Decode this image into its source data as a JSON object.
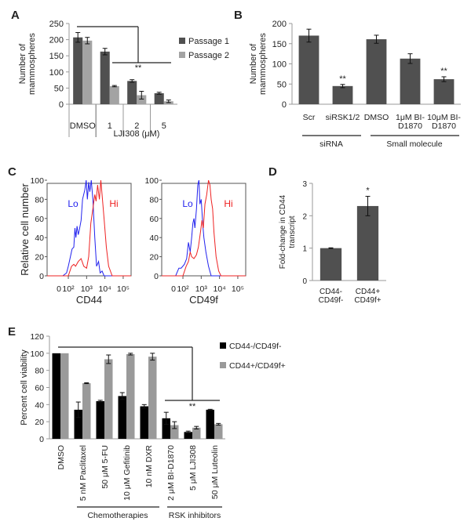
{
  "panel_letters": [
    "A",
    "B",
    "C",
    "D",
    "E"
  ],
  "chart_data": [
    {
      "id": "A",
      "type": "bar",
      "ylabel": [
        "Number of",
        "mammospheres"
      ],
      "ylim": [
        0,
        250
      ],
      "yticks": [
        0,
        50,
        100,
        150,
        200,
        250
      ],
      "categories": [
        "DMSO",
        "1",
        "2",
        "5"
      ],
      "group_label": "LJI308 (μM)",
      "series": [
        {
          "name": "Passage 1",
          "color": "#505050",
          "values": [
            207,
            163,
            72,
            34
          ],
          "errors": [
            15,
            10,
            4,
            3
          ]
        },
        {
          "name": "Passage 2",
          "color": "#a3a3a3",
          "values": [
            197,
            56,
            28,
            9
          ],
          "errors": [
            10,
            2,
            12,
            4
          ]
        }
      ],
      "legend": "right",
      "significance": "**"
    },
    {
      "id": "B",
      "type": "bar",
      "ylabel": [
        "Number of",
        "mammospheres"
      ],
      "ylim": [
        0,
        200
      ],
      "yticks": [
        0,
        50,
        100,
        150,
        200
      ],
      "categories": [
        [
          "Scr",
          ""
        ],
        [
          "siRSK1/2",
          ""
        ],
        [
          "DMSO",
          ""
        ],
        [
          "1μM BI-",
          "D1870"
        ],
        [
          "10μM BI-",
          "D1870"
        ]
      ],
      "series": [
        {
          "color": "#505050",
          "values": [
            170,
            45,
            161,
            113,
            62
          ],
          "errors": [
            16,
            4,
            10,
            12,
            6
          ]
        }
      ],
      "annotations": [
        "",
        "**",
        "",
        "",
        "**"
      ],
      "groups": [
        {
          "label": "siRNA"
        },
        {
          "label": "Small molecule"
        }
      ]
    },
    {
      "id": "C1",
      "type": "line",
      "ylabel": "Relative cell number",
      "xlabel": "CD44",
      "ylim": [
        0,
        100
      ],
      "yticks": [
        0,
        20,
        40,
        60,
        80,
        100
      ],
      "x_scale": "log",
      "xtick_labels": [
        "0",
        "10²",
        "10³",
        "10⁴",
        "10⁵"
      ],
      "series": [
        {
          "name": "Lo",
          "color": "#2222ee",
          "x": [
            50,
            80,
            100,
            130,
            160,
            200,
            230,
            260,
            300,
            350,
            400,
            500,
            600,
            800,
            950,
            1100,
            1300,
            1500,
            1800,
            2200,
            2800,
            3500,
            4500,
            5500,
            7000,
            9000
          ],
          "y": [
            0,
            3,
            10,
            20,
            28,
            30,
            50,
            40,
            52,
            43,
            48,
            58,
            80,
            90,
            100,
            80,
            98,
            88,
            100,
            80,
            40,
            10,
            15,
            3,
            5,
            0
          ]
        },
        {
          "name": "Hi",
          "color": "#ee2222",
          "x": [
            100,
            150,
            200,
            250,
            350,
            500,
            700,
            1000,
            1300,
            1700,
            2200,
            2800,
            3300,
            4000,
            5000,
            6000,
            7000,
            9000,
            12000,
            16000,
            25000
          ],
          "y": [
            0,
            10,
            12,
            10,
            15,
            18,
            10,
            8,
            20,
            55,
            70,
            85,
            78,
            95,
            80,
            100,
            85,
            60,
            30,
            10,
            0
          ]
        }
      ]
    },
    {
      "id": "C2",
      "type": "line",
      "xlabel": "CD49f",
      "ylim": [
        0,
        100
      ],
      "yticks": [
        0,
        20,
        40,
        60,
        80,
        100
      ],
      "x_scale": "log",
      "xtick_labels": [
        "0",
        "10²",
        "10³",
        "10⁴",
        "10⁵"
      ],
      "series": [
        {
          "name": "Lo",
          "color": "#2222ee",
          "x": [
            40,
            60,
            80,
            120,
            160,
            200,
            250,
            300,
            350,
            400,
            450,
            550,
            650,
            750,
            850,
            1000,
            1200,
            1400,
            1800,
            2500,
            3500
          ],
          "y": [
            0,
            8,
            8,
            12,
            18,
            35,
            25,
            40,
            55,
            60,
            50,
            70,
            95,
            100,
            75,
            80,
            55,
            40,
            25,
            10,
            0
          ]
        },
        {
          "name": "Hi",
          "color": "#ee2222",
          "x": [
            100,
            150,
            200,
            250,
            300,
            400,
            550,
            700,
            900,
            1100,
            1300,
            1600,
            2000,
            2500,
            3000,
            3500,
            4200,
            5000,
            6500,
            9000,
            12000
          ],
          "y": [
            0,
            10,
            15,
            25,
            20,
            18,
            22,
            30,
            45,
            58,
            50,
            75,
            85,
            100,
            95,
            80,
            70,
            45,
            20,
            5,
            0
          ]
        }
      ]
    },
    {
      "id": "D",
      "type": "bar",
      "ylabel": [
        "Fold-change in CD44",
        "transcript"
      ],
      "ylim": [
        0,
        3
      ],
      "yticks": [
        0,
        1,
        2,
        3
      ],
      "categories": [
        [
          "CD44-",
          "CD49f-"
        ],
        [
          "CD44+",
          "CD49f+"
        ]
      ],
      "series": [
        {
          "color": "#505050",
          "values": [
            1.0,
            2.3
          ],
          "errors": [
            0.01,
            0.3
          ]
        }
      ],
      "annotations": [
        "",
        "*"
      ]
    },
    {
      "id": "E",
      "type": "bar",
      "ylabel": "Percent cell viability",
      "ylim": [
        0,
        120
      ],
      "yticks": [
        0,
        20,
        40,
        60,
        80,
        100,
        120
      ],
      "categories": [
        "DMSO",
        "5 nM Paclitaxel",
        "50 μM 5-FU",
        "10 μM Gefitinib",
        "10 nM DXR",
        "2 μM BI-D1870",
        "5 μM LJI308",
        "50 μM Luteolin"
      ],
      "series": [
        {
          "name": "CD44-/CD49f-",
          "color": "#000000",
          "values": [
            100,
            34,
            44,
            50,
            38,
            24,
            8,
            34
          ],
          "errors": [
            0,
            9,
            1,
            4,
            2,
            7,
            1,
            0.5
          ]
        },
        {
          "name": "CD44+/CD49f+",
          "color": "#9a9a9a",
          "values": [
            100,
            65,
            93,
            99,
            96,
            16,
            13,
            17
          ],
          "errors": [
            0,
            0.5,
            5,
            1,
            4,
            4,
            1.5,
            1
          ]
        }
      ],
      "groups": [
        {
          "label": "Chemotherapies"
        },
        {
          "label": "RSK inhibitors"
        }
      ],
      "legend": "right",
      "significance": "**"
    }
  ]
}
